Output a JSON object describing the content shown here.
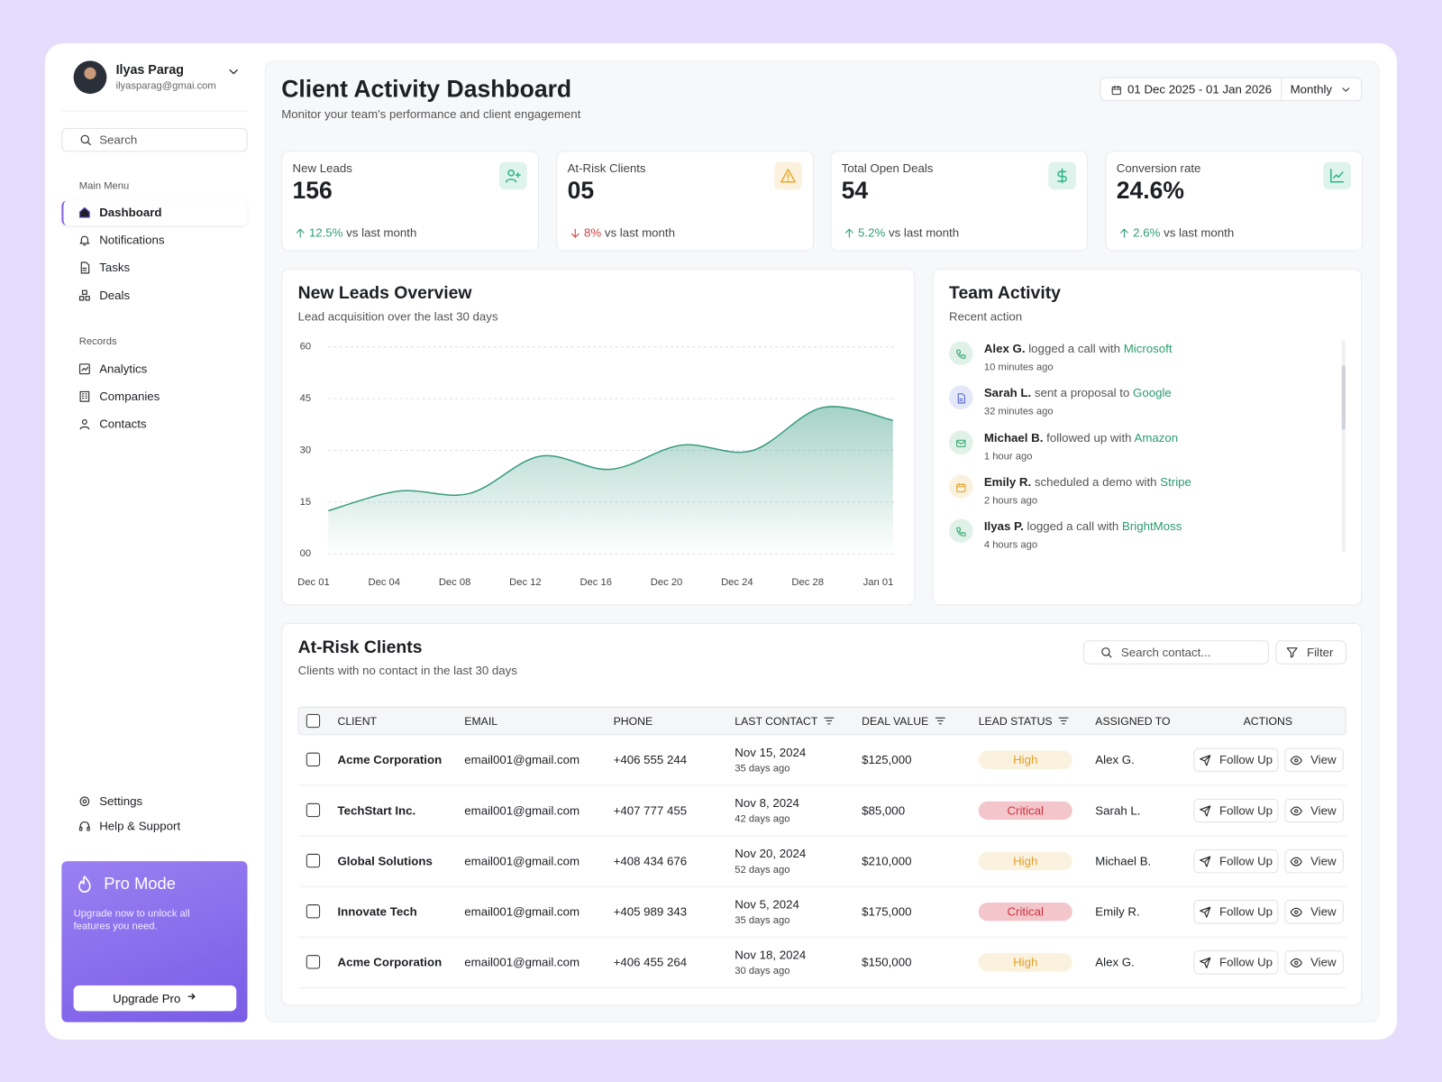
{
  "user": {
    "name": "Ilyas Parag",
    "email": "ilyasparag@gmai.com"
  },
  "sidebar": {
    "search": "Search",
    "main_menu_label": "Main Menu",
    "main_menu": [
      "Dashboard",
      "Notifications",
      "Tasks",
      "Deals"
    ],
    "records_label": "Records",
    "records": [
      "Analytics",
      "Companies",
      "Contacts"
    ],
    "footer": [
      "Settings",
      "Help & Support"
    ]
  },
  "pro": {
    "title": "Pro Mode",
    "text": "Upgrade now to unlock all features you need.",
    "button": "Upgrade Pro"
  },
  "header": {
    "title": "Client Activity Dashboard",
    "subtitle": "Monitor your team's performance and client engagement",
    "date_range": "01 Dec 2025 - 01 Jan 2026",
    "period": "Monthly"
  },
  "kpis": [
    {
      "label": "New Leads",
      "value": "156",
      "change": "12.5%",
      "suffix": "vs last month",
      "change_color": "#2f9e78",
      "icon_color": "#2fb58a"
    },
    {
      "label": "At-Risk Clients",
      "value": "05",
      "change": "8%",
      "suffix": "vs last month",
      "change_color": "#d24040",
      "icon_color": "#e9a92a"
    },
    {
      "label": "Total Open Deals",
      "value": "54",
      "change": "5.2%",
      "suffix": "vs last month",
      "change_color": "#2f9e78",
      "icon_color": "#2fb58a"
    },
    {
      "label": "Conversion rate",
      "value": "24.6%",
      "change": "2.6%",
      "suffix": "vs last month",
      "change_color": "#2f9e78",
      "icon_color": "#2fb58a"
    }
  ],
  "chart_data": {
    "type": "line",
    "title": "New Leads Overview",
    "subtitle": "Lead acquisition over the last 30 days",
    "categories": [
      "Dec 01",
      "Dec 04",
      "Dec 08",
      "Dec 12",
      "Dec 16",
      "Dec 20",
      "Dec 24",
      "Dec 28",
      "Jan 01"
    ],
    "values": [
      12.5,
      18.2,
      17.5,
      28.3,
      24.5,
      31.5,
      29.9,
      42.4,
      38.7
    ],
    "color": "#3a9c80",
    "ylim": [
      0,
      60
    ],
    "yticks": [
      {
        "value": 0,
        "label": "00"
      },
      15,
      30,
      45,
      60
    ],
    "grid": true
  },
  "activity": {
    "title": "Team Activity",
    "subtitle": "Recent action",
    "items": [
      {
        "actor": "Alex G.",
        "action": "logged a call with",
        "target": "Microsoft",
        "time": "10 minutes ago",
        "color": "#2fa36b"
      },
      {
        "actor": "Sarah L.",
        "action": "sent a proposal to",
        "target": "Google",
        "time": "32 minutes ago",
        "color": "#4a5fd1"
      },
      {
        "actor": "Michael B.",
        "action": "followed up with",
        "target": "Amazon",
        "time": "1 hour ago",
        "color": "#2fa36b"
      },
      {
        "actor": "Emily R.",
        "action": "scheduled a demo with",
        "target": "Stripe",
        "time": "2 hours ago",
        "color": "#e0a028"
      },
      {
        "actor": "Ilyas P.",
        "action": "logged a call with",
        "target": "BrightMoss",
        "time": "4 hours ago",
        "color": "#2fa36b"
      }
    ]
  },
  "clients": {
    "title": "At-Risk Clients",
    "subtitle": "Clients with no contact in the last 30 days",
    "search": "Search contact...",
    "filter": "Filter",
    "columns": [
      "CLIENT",
      "EMAIL",
      "PHONE",
      "LAST CONTACT",
      "DEAL VALUE",
      "LEAD STATUS",
      "ASSIGNED TO",
      "ACTIONS"
    ],
    "actions": [
      "Follow Up",
      "View"
    ],
    "rows": [
      {
        "client": "Acme Corporation",
        "email": "email001@gmail.com",
        "phone": "+406 555 244",
        "last_contact": "Nov 15, 2024",
        "days_ago": "35 days ago",
        "deal_value": "$125,000",
        "status": "High",
        "status_color": "#e0a028",
        "assigned": "Alex G."
      },
      {
        "client": "TechStart Inc.",
        "email": "email001@gmail.com",
        "phone": "+407 777 455",
        "last_contact": "Nov 8, 2024",
        "days_ago": "42 days ago",
        "deal_value": "$85,000",
        "status": "Critical",
        "status_color": "#d2323f",
        "assigned": "Sarah L."
      },
      {
        "client": "Global Solutions",
        "email": "email001@gmail.com",
        "phone": "+408 434 676",
        "last_contact": "Nov 20, 2024",
        "days_ago": "52 days ago",
        "deal_value": "$210,000",
        "status": "High",
        "status_color": "#e0a028",
        "assigned": "Michael B."
      },
      {
        "client": "Innovate Tech",
        "email": "email001@gmail.com",
        "phone": "+405 989 343",
        "last_contact": "Nov 5, 2024",
        "days_ago": "35 days ago",
        "deal_value": "$175,000",
        "status": "Critical",
        "status_color": "#d2323f",
        "assigned": "Emily R."
      },
      {
        "client": "Acme Corporation",
        "email": "email001@gmail.com",
        "phone": "+406 455 264",
        "last_contact": "Nov 18, 2024",
        "days_ago": "30 days ago",
        "deal_value": "$150,000",
        "status": "High",
        "status_color": "#e0a028",
        "assigned": "Alex G."
      }
    ]
  }
}
